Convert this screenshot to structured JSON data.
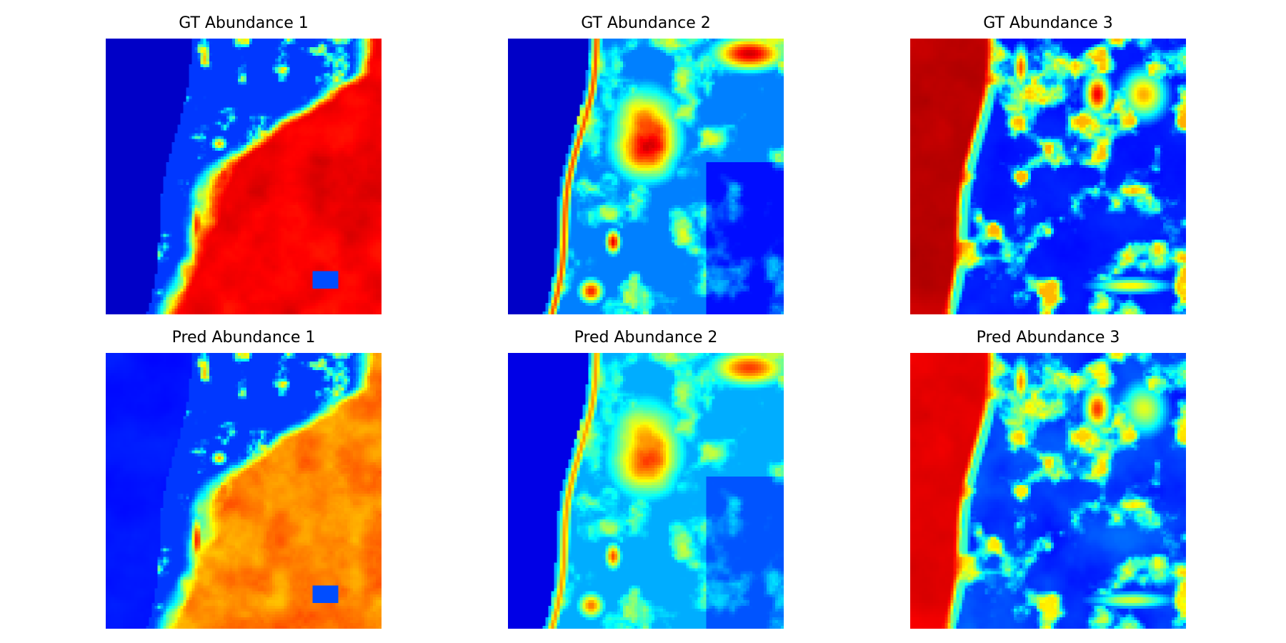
{
  "figure": {
    "colormap": "jet",
    "axes": "off"
  },
  "chart_data": [
    {
      "type": "heatmap",
      "title": "GT Abundance 1",
      "colormap": "jet",
      "vmin": 0,
      "vmax": 1,
      "axes": "off",
      "pattern": "abundance-1",
      "variant": "gt"
    },
    {
      "type": "heatmap",
      "title": "GT Abundance 2",
      "colormap": "jet",
      "vmin": 0,
      "vmax": 1,
      "axes": "off",
      "pattern": "abundance-2",
      "variant": "gt"
    },
    {
      "type": "heatmap",
      "title": "GT Abundance 3",
      "colormap": "jet",
      "vmin": 0,
      "vmax": 1,
      "axes": "off",
      "pattern": "abundance-3",
      "variant": "gt"
    },
    {
      "type": "heatmap",
      "title": "Pred Abundance 1",
      "colormap": "jet",
      "vmin": 0,
      "vmax": 1,
      "axes": "off",
      "pattern": "abundance-1",
      "variant": "pred"
    },
    {
      "type": "heatmap",
      "title": "Pred Abundance 2",
      "colormap": "jet",
      "vmin": 0,
      "vmax": 1,
      "axes": "off",
      "pattern": "abundance-2",
      "variant": "pred"
    },
    {
      "type": "heatmap",
      "title": "Pred Abundance 3",
      "colormap": "jet",
      "vmin": 0,
      "vmax": 1,
      "axes": "off",
      "pattern": "abundance-3",
      "variant": "pred"
    }
  ]
}
